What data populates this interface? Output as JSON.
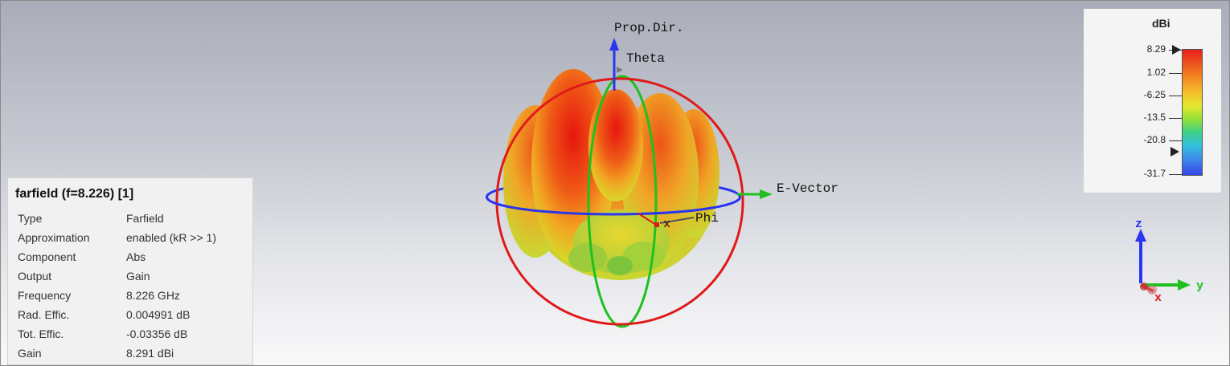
{
  "window": {
    "title": "farfield (f=8.226) [1]"
  },
  "scene": {
    "prop_dir_label": "Prop.Dir.",
    "theta_label": "Theta",
    "phi_label": "Phi",
    "x_label": "x",
    "e_vector_label": "E-Vector"
  },
  "info": {
    "title": "farfield (f=8.226) [1]",
    "rows": [
      {
        "key": "Type",
        "value": "Farfield"
      },
      {
        "key": "Approximation",
        "value": "enabled (kR >> 1)"
      },
      {
        "key": "Component",
        "value": "Abs"
      },
      {
        "key": "Output",
        "value": "Gain"
      },
      {
        "key": "Frequency",
        "value": "8.226 GHz"
      },
      {
        "key": "Rad. Effic.",
        "value": "0.004991 dB"
      },
      {
        "key": "Tot. Effic.",
        "value": "-0.03356 dB"
      },
      {
        "key": "Gain",
        "value": "8.291 dBi"
      }
    ]
  },
  "legend": {
    "title": "dBi",
    "ticks": [
      "8.29",
      "1.02",
      "-6.25",
      "-13.5",
      "-20.8",
      "-31.7"
    ]
  },
  "axes_triad": {
    "z": "z",
    "y": "y",
    "x": "x"
  },
  "colors": {
    "axis_blue": "#2a35f0",
    "axis_green": "#1fc01f",
    "axis_red": "#e01a1a"
  }
}
